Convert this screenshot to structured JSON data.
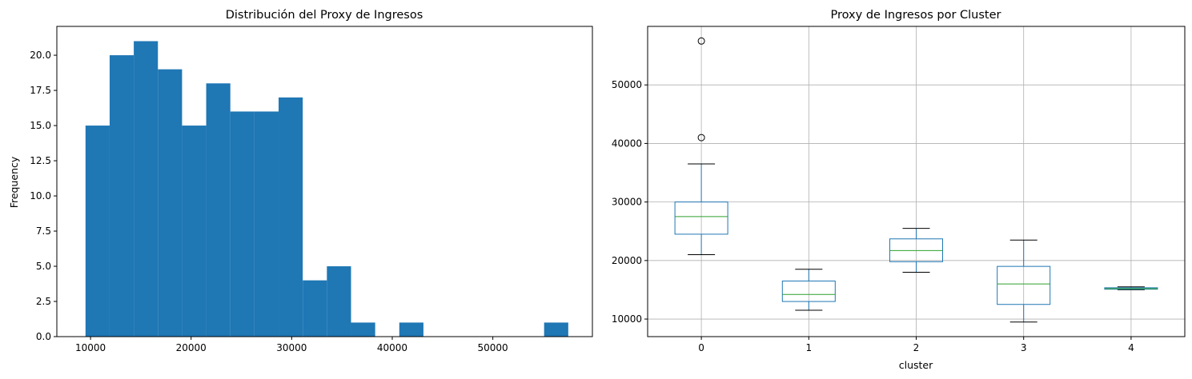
{
  "chart_data": [
    {
      "type": "histogram",
      "title": "Distribución del Proxy de Ingresos",
      "xlabel": "",
      "ylabel": "Frequency",
      "xlim": [
        6650,
        59900
      ],
      "ylim": [
        0,
        22.05
      ],
      "xticks": [
        10000,
        20000,
        30000,
        40000,
        50000
      ],
      "xtick_labels": [
        "10000",
        "20000",
        "30000",
        "40000",
        "50000"
      ],
      "yticks": [
        0,
        2.5,
        5,
        7.5,
        10,
        12.5,
        15,
        17.5,
        20
      ],
      "ytick_labels": [
        "0.0",
        "2.5",
        "5.0",
        "7.5",
        "10.0",
        "12.5",
        "15.0",
        "17.5",
        "20.0"
      ],
      "bar_color": "#1f77b4",
      "bin_edges": [
        9500,
        11900,
        14300,
        16700,
        19100,
        21500,
        23900,
        26300,
        28700,
        31100,
        33500,
        35900,
        38300,
        40700,
        43100,
        45500,
        47900,
        50300,
        52700,
        55100,
        57500
      ],
      "counts": [
        15,
        20,
        21,
        19,
        15,
        18,
        16,
        16,
        17,
        4,
        5,
        1,
        0,
        1,
        0,
        0,
        0,
        0,
        0,
        1
      ],
      "grid": false
    },
    {
      "type": "box",
      "title": "Proxy de Ingresos por Cluster",
      "xlabel": "cluster",
      "ylabel": "",
      "ylim": [
        7000,
        60000
      ],
      "yticks": [
        10000,
        20000,
        30000,
        40000,
        50000
      ],
      "ytick_labels": [
        "10000",
        "20000",
        "30000",
        "40000",
        "50000"
      ],
      "categories": [
        "0",
        "1",
        "2",
        "3",
        "4"
      ],
      "grid": true,
      "box_color": "#1f77b4",
      "median_color": "#2ca02c",
      "boxes": [
        {
          "category": "0",
          "whislo": 21000,
          "q1": 24500,
          "med": 27500,
          "q3": 30000,
          "whishi": 36500,
          "fliers": [
            41000,
            57500
          ]
        },
        {
          "category": "1",
          "whislo": 11500,
          "q1": 13000,
          "med": 14200,
          "q3": 16500,
          "whishi": 18500,
          "fliers": []
        },
        {
          "category": "2",
          "whislo": 18000,
          "q1": 19800,
          "med": 21700,
          "q3": 23700,
          "whishi": 25500,
          "fliers": []
        },
        {
          "category": "3",
          "whislo": 9500,
          "q1": 12500,
          "med": 16000,
          "q3": 19000,
          "whishi": 23500,
          "fliers": []
        },
        {
          "category": "4",
          "whislo": 15000,
          "q1": 15100,
          "med": 15200,
          "q3": 15350,
          "whishi": 15500,
          "fliers": []
        }
      ]
    }
  ]
}
